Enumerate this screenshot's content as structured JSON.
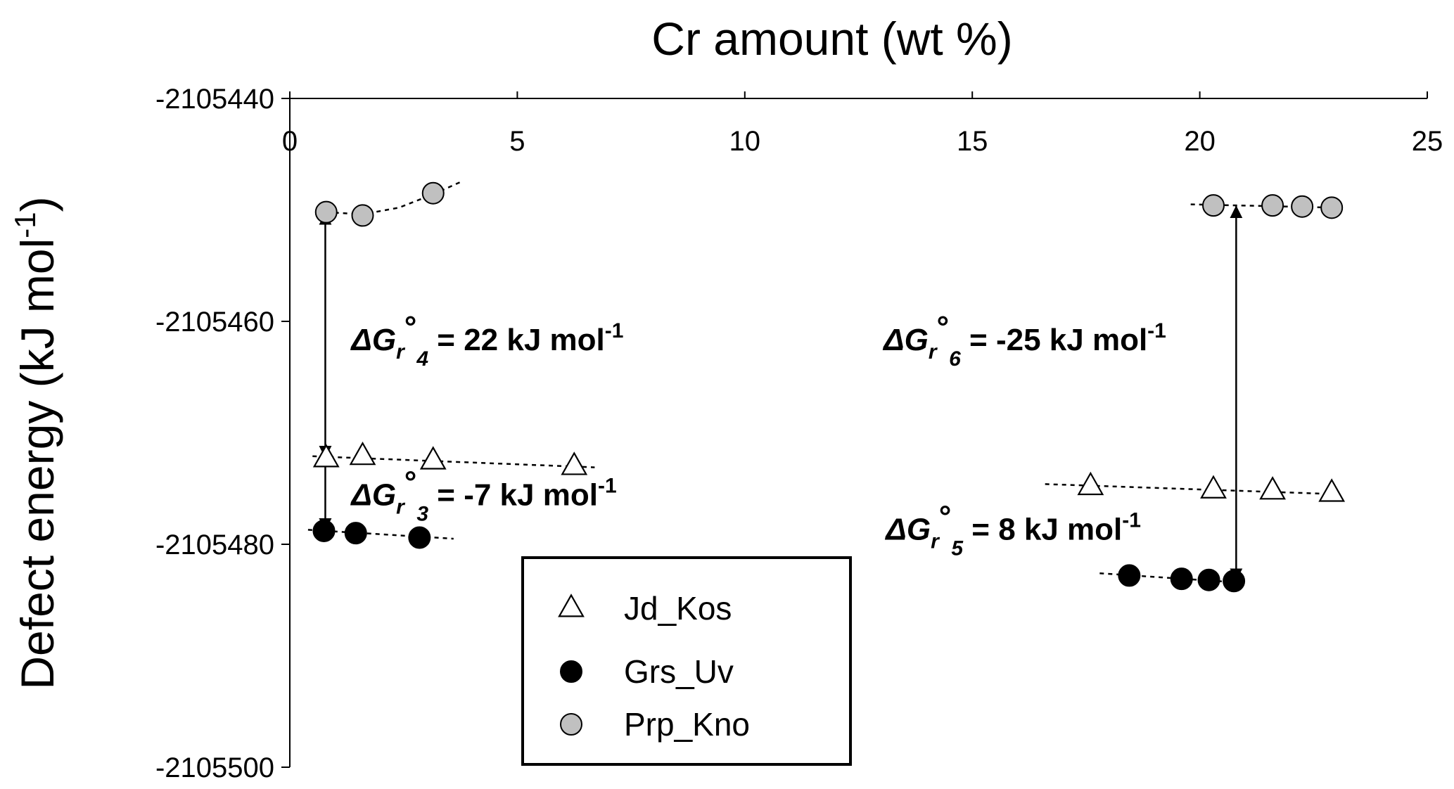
{
  "chart_data": {
    "type": "scatter",
    "xlabel": "Cr amount (wt %)",
    "ylabel": "Defect energy (kJ mol-1)",
    "xlim": [
      0,
      25
    ],
    "ylim": [
      -2105500,
      -2105440
    ],
    "x_ticks": [
      0,
      5,
      10,
      15,
      20,
      25
    ],
    "y_ticks": [
      -2105440,
      -2105460,
      -2105480,
      -2105500
    ],
    "x_axis_position": "top",
    "grid": false,
    "legend_position": "bottom-center",
    "series": [
      {
        "name": "Jd_Kos",
        "marker": "open-triangle",
        "color": "#ffffff",
        "groups": [
          {
            "x": [
              0.8,
              1.6,
              3.15,
              6.25
            ],
            "y": [
              -2105472.3,
              -2105472.1,
              -2105472.5,
              -2105473.0
            ]
          },
          {
            "x": [
              17.6,
              20.3,
              21.6,
              22.9
            ],
            "y": [
              -2105474.8,
              -2105475.1,
              -2105475.2,
              -2105475.4
            ]
          }
        ]
      },
      {
        "name": "Grs_Uv",
        "marker": "filled-circle",
        "color": "#000000",
        "groups": [
          {
            "x": [
              0.75,
              1.45,
              2.85
            ],
            "y": [
              -2105478.8,
              -2105479.0,
              -2105479.4
            ]
          },
          {
            "x": [
              18.45,
              19.6,
              20.2,
              20.75
            ],
            "y": [
              -2105482.8,
              -2105483.1,
              -2105483.2,
              -2105483.3
            ]
          }
        ]
      },
      {
        "name": "Prp_Kno",
        "marker": "filled-circle",
        "color": "#c0c0c0",
        "groups": [
          {
            "x": [
              0.8,
              1.6,
              3.15
            ],
            "y": [
              -2105450.2,
              -2105450.5,
              -2105448.5
            ]
          },
          {
            "x": [
              20.3,
              21.6,
              22.25,
              22.9
            ],
            "y": [
              -2105449.6,
              -2105449.6,
              -2105449.7,
              -2105449.8
            ]
          }
        ]
      }
    ],
    "trendlines": [
      {
        "series": "Prp_Kno",
        "x": [
          0.8,
          1.6,
          2.4,
          3.15,
          3.75
        ],
        "y": [
          -2105450.2,
          -2105450.4,
          -2105449.8,
          -2105448.6,
          -2105447.5
        ]
      },
      {
        "series": "Prp_Kno",
        "x": [
          19.8,
          23.0
        ],
        "y": [
          -2105449.5,
          -2105449.8
        ]
      },
      {
        "series": "Jd_Kos",
        "x": [
          0.5,
          6.7
        ],
        "y": [
          -2105472.1,
          -2105473.1
        ]
      },
      {
        "series": "Jd_Kos",
        "x": [
          16.6,
          23.0
        ],
        "y": [
          -2105474.6,
          -2105475.5
        ]
      },
      {
        "series": "Grs_Uv",
        "x": [
          0.4,
          3.6
        ],
        "y": [
          -2105478.7,
          -2105479.5
        ]
      },
      {
        "series": "Grs_Uv",
        "x": [
          17.8,
          20.75
        ],
        "y": [
          -2105482.6,
          -2105483.4
        ]
      }
    ],
    "arrows": [
      {
        "x": 0.78,
        "y_from": -2105472.3,
        "y_to": -2105450.2,
        "both_heads": true
      },
      {
        "x": 0.78,
        "y_from": -2105472.3,
        "y_to": -2105478.8,
        "both_heads": false
      },
      {
        "x": 20.8,
        "y_from": -2105449.6,
        "y_to": -2105483.3,
        "both_heads": true
      }
    ],
    "annotations": [
      {
        "id": "dg4",
        "text": "ΔGr°4 = 22 kJ mol-1",
        "prefix": "ΔG",
        "sub1": "r",
        "sup1": "°",
        "sub2": "4",
        "value": " = 22 kJ mol",
        "sup2": "-1",
        "anchor_x": 1.35,
        "anchor_y": -2105462.6
      },
      {
        "id": "dg3",
        "text": "ΔGr°3 = -7 kJ mol-1",
        "prefix": "ΔG",
        "sub1": "r",
        "sup1": "°",
        "sub2": "3",
        "value": " = -7 kJ mol",
        "sup2": "-1",
        "anchor_x": 1.35,
        "anchor_y": -2105476.5
      },
      {
        "id": "dg6",
        "text": "ΔGr°6 = -25 kJ mol-1",
        "prefix": "ΔG",
        "sub1": "r",
        "sup1": "°",
        "sub2": "6",
        "value": " = -25 kJ mol",
        "sup2": "-1",
        "anchor_x": 13.05,
        "anchor_y": -2105462.6
      },
      {
        "id": "dg5",
        "text": "ΔGr°5 = 8 kJ mol-1",
        "prefix": "ΔG",
        "sub1": "r",
        "sup1": "°",
        "sub2": "5",
        "value": " = 8 kJ mol",
        "sup2": "-1",
        "anchor_x": 13.1,
        "anchor_y": -2105479.6
      }
    ],
    "legend": [
      {
        "label": "Jd_Kos",
        "marker": "open-triangle"
      },
      {
        "label": "Grs_Uv",
        "marker": "filled-circle-black"
      },
      {
        "label": "Prp_Kno",
        "marker": "filled-circle-gray"
      }
    ]
  }
}
